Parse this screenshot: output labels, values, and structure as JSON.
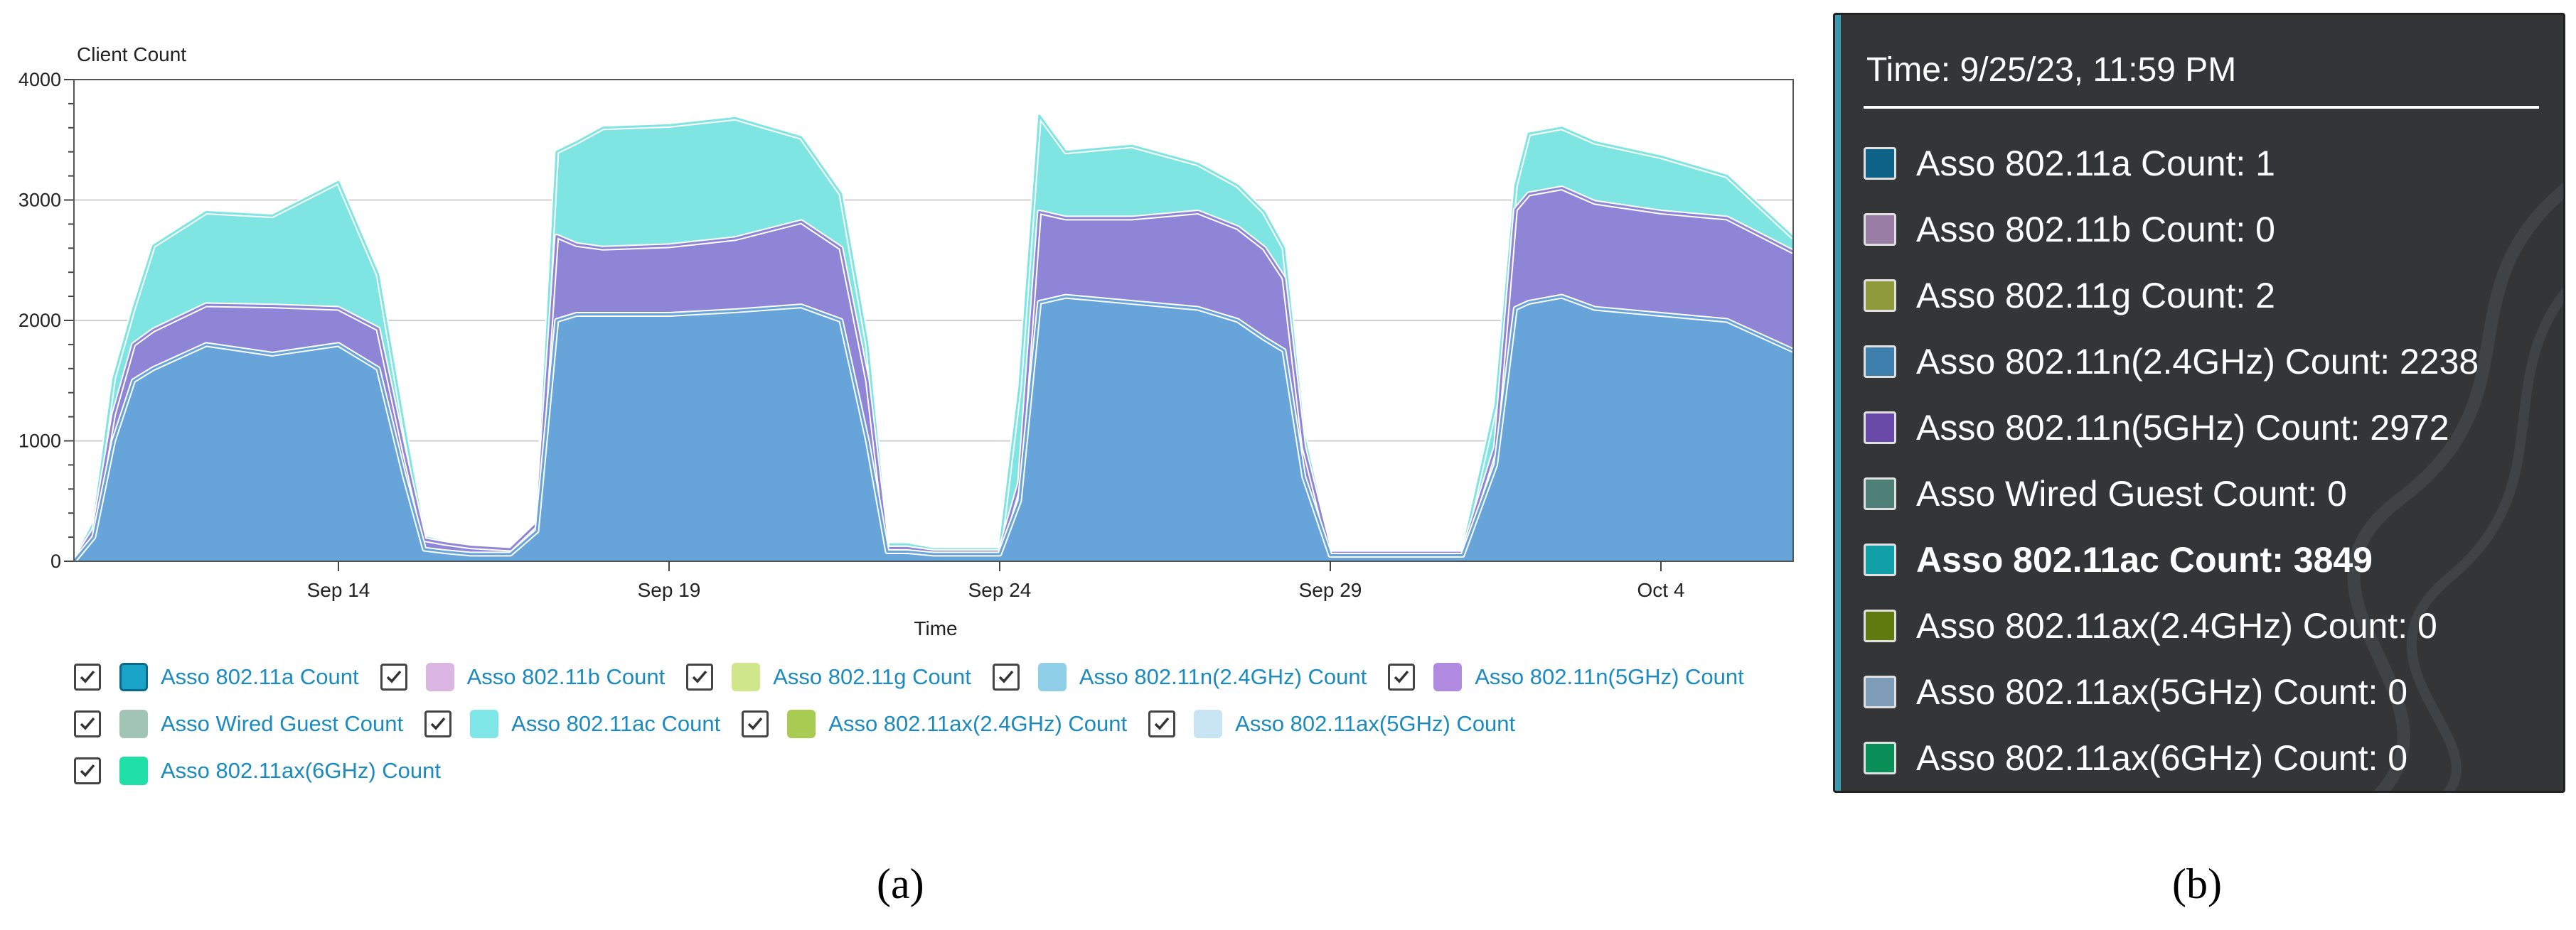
{
  "chart_data": {
    "type": "area",
    "stacked": true,
    "ylabel": "Client Count",
    "xlabel": "Time",
    "ylim": [
      0,
      4000
    ],
    "yticks": [
      0,
      1000,
      2000,
      3000,
      4000
    ],
    "xlim": [
      0,
      26
    ],
    "x_tick_labels": [
      {
        "label": "Sep 14",
        "x": 4
      },
      {
        "label": "Sep 19",
        "x": 9
      },
      {
        "label": "Sep 24",
        "x": 14
      },
      {
        "label": "Sep 29",
        "x": 19
      },
      {
        "label": "Oct 4",
        "x": 24
      }
    ],
    "x": [
      0,
      0.3,
      0.6,
      0.9,
      1.2,
      2,
      3,
      4,
      4.6,
      5,
      5.3,
      5.6,
      6,
      6.6,
      7,
      7.3,
      7.6,
      8,
      9,
      10,
      11,
      11.6,
      12,
      12.3,
      12.6,
      13,
      14,
      14.3,
      14.6,
      15,
      16,
      17,
      17.6,
      18,
      18.3,
      18.6,
      19,
      19.5,
      20,
      21,
      21.5,
      21.8,
      22,
      22.5,
      23,
      24,
      25,
      26
    ],
    "series": [
      {
        "name": "Asso 802.11a Count",
        "color": "#1c6f98",
        "values": [
          0,
          0,
          0,
          0,
          0,
          0,
          0,
          0,
          0,
          0,
          0,
          0,
          0,
          0,
          0,
          0,
          0,
          0,
          0,
          0,
          0,
          0,
          0,
          0,
          0,
          0,
          0,
          0,
          0,
          0,
          0,
          0,
          0,
          0,
          0,
          0,
          0,
          0,
          0,
          0,
          0,
          0,
          0,
          0,
          0,
          0,
          0,
          0
        ]
      },
      {
        "name": "Asso 802.11b Count",
        "color": "#d9b0e0",
        "values": [
          0,
          0,
          0,
          0,
          0,
          0,
          0,
          0,
          0,
          0,
          0,
          0,
          0,
          0,
          0,
          0,
          0,
          0,
          0,
          0,
          0,
          0,
          0,
          0,
          0,
          0,
          0,
          0,
          0,
          0,
          0,
          0,
          0,
          0,
          0,
          0,
          0,
          0,
          0,
          0,
          0,
          0,
          0,
          0,
          0,
          0,
          0,
          0
        ]
      },
      {
        "name": "Asso 802.11g Count",
        "color": "#bcd470",
        "values": [
          0,
          0,
          0,
          0,
          0,
          0,
          0,
          0,
          0,
          0,
          0,
          0,
          0,
          0,
          0,
          0,
          0,
          0,
          0,
          0,
          0,
          0,
          0,
          0,
          0,
          0,
          0,
          0,
          0,
          0,
          0,
          0,
          0,
          0,
          0,
          0,
          0,
          0,
          0,
          0,
          0,
          0,
          0,
          0,
          0,
          0,
          0,
          0
        ]
      },
      {
        "name": "Asso 802.11n(2.4GHz) Count",
        "color": "#66a4d9",
        "values": [
          0,
          200,
          1000,
          1500,
          1600,
          1800,
          1720,
          1800,
          1600,
          700,
          100,
          80,
          60,
          60,
          250,
          2000,
          2050,
          2050,
          2050,
          2080,
          2120,
          2000,
          1000,
          80,
          80,
          60,
          60,
          500,
          2150,
          2200,
          2150,
          2100,
          2000,
          1850,
          1750,
          700,
          50,
          50,
          50,
          50,
          800,
          2100,
          2150,
          2200,
          2100,
          2050,
          2000,
          1750
        ]
      },
      {
        "name": "Asso 802.11n(5GHz) Count",
        "color": "#8f85d6",
        "values": [
          0,
          60,
          220,
          300,
          320,
          330,
          400,
          300,
          330,
          200,
          80,
          70,
          60,
          40,
          60,
          700,
          580,
          550,
          570,
          600,
          700,
          600,
          500,
          30,
          30,
          20,
          20,
          150,
          750,
          650,
          700,
          800,
          770,
          750,
          600,
          250,
          20,
          20,
          20,
          20,
          150,
          820,
          900,
          900,
          880,
          850,
          850,
          820
        ]
      },
      {
        "name": "Asso Wired Guest Count",
        "color": "#9dbdb2",
        "values": [
          0,
          0,
          0,
          0,
          0,
          0,
          0,
          0,
          0,
          0,
          0,
          0,
          0,
          0,
          0,
          0,
          0,
          0,
          0,
          0,
          0,
          0,
          0,
          0,
          0,
          0,
          0,
          0,
          0,
          0,
          0,
          0,
          0,
          0,
          0,
          0,
          0,
          0,
          0,
          0,
          0,
          0,
          0,
          0,
          0,
          0,
          0,
          0
        ]
      },
      {
        "name": "Asso 802.11ac Count",
        "color": "#7fe5e3",
        "values": [
          0,
          60,
          300,
          300,
          700,
          770,
          750,
          1050,
          450,
          200,
          20,
          10,
          10,
          10,
          10,
          700,
          850,
          1000,
          1000,
          1000,
          700,
          450,
          300,
          30,
          30,
          20,
          20,
          800,
          800,
          550,
          600,
          400,
          350,
          300,
          250,
          100,
          10,
          10,
          10,
          10,
          350,
          200,
          500,
          500,
          500,
          460,
          350,
          120
        ]
      },
      {
        "name": "Asso 802.11ax(2.4GHz) Count",
        "color": "#9cc43c",
        "values": [
          0,
          0,
          0,
          0,
          0,
          0,
          0,
          0,
          0,
          0,
          0,
          0,
          0,
          0,
          0,
          0,
          0,
          0,
          0,
          0,
          0,
          0,
          0,
          0,
          0,
          0,
          0,
          0,
          0,
          0,
          0,
          0,
          0,
          0,
          0,
          0,
          0,
          0,
          0,
          0,
          0,
          0,
          0,
          0,
          0,
          0,
          0,
          0
        ]
      },
      {
        "name": "Asso 802.11ax(5GHz) Count",
        "color": "#c4e0f0",
        "values": [
          0,
          0,
          0,
          0,
          0,
          0,
          0,
          0,
          0,
          0,
          0,
          0,
          0,
          0,
          0,
          0,
          0,
          0,
          0,
          0,
          0,
          0,
          0,
          0,
          0,
          0,
          0,
          0,
          0,
          0,
          0,
          0,
          0,
          0,
          0,
          0,
          0,
          0,
          0,
          0,
          0,
          0,
          0,
          0,
          0,
          0,
          0,
          0
        ]
      },
      {
        "name": "Asso 802.11ax(6GHz) Count",
        "color": "#1ee0a0",
        "values": [
          0,
          0,
          0,
          0,
          0,
          0,
          0,
          0,
          0,
          0,
          0,
          0,
          0,
          0,
          0,
          0,
          0,
          0,
          0,
          0,
          0,
          0,
          0,
          0,
          0,
          0,
          0,
          0,
          0,
          0,
          0,
          0,
          0,
          0,
          0,
          0,
          0,
          0,
          0,
          0,
          0,
          0,
          0,
          0,
          0,
          0,
          0,
          0
        ]
      }
    ]
  },
  "legend": {
    "rows": [
      [
        {
          "label": "Asso 802.11a Count",
          "swatch": "#1aa3c9",
          "border": "#0b6a8a"
        },
        {
          "label": "Asso 802.11b Count",
          "swatch": "#dcb6e2",
          "border": "#dcb6e2"
        },
        {
          "label": "Asso 802.11g Count",
          "swatch": "#d0e68a",
          "border": "#d0e68a"
        },
        {
          "label": "Asso 802.11n(2.4GHz) Count",
          "swatch": "#8fcfe8",
          "border": "#8fcfe8"
        },
        {
          "label": "Asso 802.11n(5GHz) Count",
          "swatch": "#b08ae0",
          "border": "#b08ae0"
        }
      ],
      [
        {
          "label": "Asso Wired Guest Count",
          "swatch": "#a2c4b6",
          "border": "#a2c4b6"
        },
        {
          "label": "Asso 802.11ac Count",
          "swatch": "#7ee6e6",
          "border": "#7ee6e6"
        },
        {
          "label": "Asso 802.11ax(2.4GHz) Count",
          "swatch": "#a8cc52",
          "border": "#a8cc52"
        },
        {
          "label": "Asso 802.11ax(5GHz) Count",
          "swatch": "#c8e4f2",
          "border": "#c8e4f2"
        }
      ],
      [
        {
          "label": "Asso 802.11ax(6GHz) Count",
          "swatch": "#20e0a8",
          "border": "#20e0a8"
        }
      ]
    ]
  },
  "tooltip": {
    "time": "Time: 9/25/23, 11:59 PM",
    "rows": [
      {
        "label": "Asso 802.11a Count: 1",
        "color": "#0e6287",
        "bold": false
      },
      {
        "label": "Asso 802.11b Count: 0",
        "color": "#9a7da4",
        "bold": false
      },
      {
        "label": "Asso 802.11g Count: 2",
        "color": "#8f9a3c",
        "bold": false
      },
      {
        "label": "Asso 802.11n(2.4GHz) Count:  2238",
        "color": "#3f7fae",
        "bold": false
      },
      {
        "label": "Asso 802.11n(5GHz) Count:  2972",
        "color": "#6a4aa8",
        "bold": false
      },
      {
        "label": "Asso Wired Guest Count: 0",
        "color": "#4e8077",
        "bold": false
      },
      {
        "label": "Asso 802.11ac Count:  3849",
        "color": "#11a0a8",
        "bold": true
      },
      {
        "label": "Asso 802.11ax(2.4GHz) Count: 0",
        "color": "#5f7a0e",
        "bold": false
      },
      {
        "label": "Asso 802.11ax(5GHz) Count: 0",
        "color": "#7f9db8",
        "bold": false
      },
      {
        "label": "Asso 802.11ax(6GHz) Count: 0",
        "color": "#0a8f58",
        "bold": false
      }
    ]
  },
  "captions": {
    "a": "(a)",
    "b": "(b)"
  }
}
